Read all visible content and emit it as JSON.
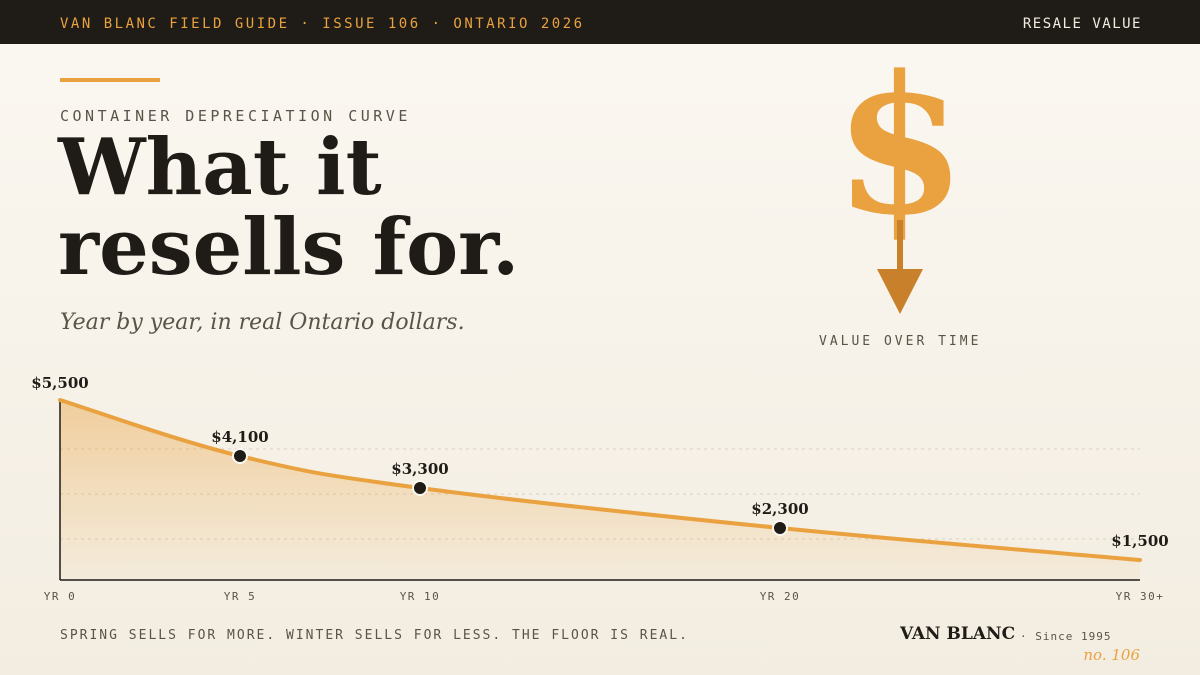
{
  "header": {
    "publication": "VAN BLANC FIELD GUIDE · ISSUE 106 · ONTARIO 2026",
    "section": "RESALE VALUE"
  },
  "kicker": "CONTAINER DEPRECIATION CURVE",
  "headline": {
    "line1": "What it",
    "line2": "resells for."
  },
  "subtitle": "Year by year, in real Ontario dollars.",
  "emblem": {
    "symbol": "$",
    "caption": "VALUE OVER TIME",
    "icon": "dollar-down-arrow-icon"
  },
  "colors": {
    "accent": "#e9a23f",
    "accent_dark": "#c8812a",
    "ink": "#1f1b16",
    "muted": "#5a5348",
    "background": "#f7f2e8"
  },
  "chart_data": {
    "type": "area",
    "x": [
      0,
      5,
      10,
      20,
      30
    ],
    "tick_labels": [
      "YR 0",
      "YR 5",
      "YR 10",
      "YR 20",
      "YR 30+"
    ],
    "values": [
      5500,
      4100,
      3300,
      2300,
      1500
    ],
    "value_labels": [
      "$5,500",
      "$4,100",
      "$3,300",
      "$2,300",
      "$1,500"
    ],
    "markers": [
      false,
      true,
      true,
      true,
      false
    ],
    "xlim": [
      0,
      30
    ],
    "ylim": [
      1000,
      5500
    ],
    "grid": "horizontal dashed",
    "legend": "none"
  },
  "footer": {
    "note": "SPRING SELLS FOR MORE. WINTER SELLS FOR LESS. THE FLOOR IS REAL.",
    "brand": "VAN BLANC",
    "since": "· Since 1995",
    "issue": "no. 106"
  }
}
